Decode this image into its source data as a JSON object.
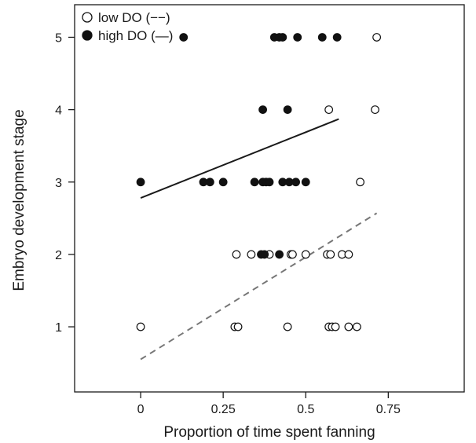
{
  "chart_data": {
    "type": "scatter",
    "title": "",
    "xlabel": "Proportion of time spent fanning",
    "ylabel": "Embryo development stage",
    "xlim": [
      -0.2,
      0.98
    ],
    "ylim": [
      0.1,
      5.45
    ],
    "x_ticks": [
      0,
      0.25,
      0.5,
      0.75
    ],
    "x_tick_labels": [
      "0",
      "0.25",
      "0.5",
      "0.75"
    ],
    "y_ticks": [
      1,
      2,
      3,
      4,
      5
    ],
    "y_tick_labels": [
      "1",
      "2",
      "3",
      "4",
      "5"
    ],
    "grid": false,
    "legend_position": "top-left",
    "series": [
      {
        "name": "low DO",
        "legend_text": "low DO",
        "legend_line_glyph": "(−−)",
        "marker": "open-circle",
        "line_style": "dashed",
        "line_color": "#777777",
        "points": [
          [
            0.0,
            1
          ],
          [
            0.285,
            1
          ],
          [
            0.295,
            1
          ],
          [
            0.445,
            1
          ],
          [
            0.57,
            1
          ],
          [
            0.58,
            1
          ],
          [
            0.59,
            1
          ],
          [
            0.63,
            1
          ],
          [
            0.655,
            1
          ],
          [
            0.29,
            2
          ],
          [
            0.335,
            2
          ],
          [
            0.39,
            2
          ],
          [
            0.455,
            2
          ],
          [
            0.46,
            2
          ],
          [
            0.5,
            2
          ],
          [
            0.565,
            2
          ],
          [
            0.575,
            2
          ],
          [
            0.61,
            2
          ],
          [
            0.63,
            2
          ],
          [
            0.665,
            3
          ],
          [
            0.57,
            4
          ],
          [
            0.71,
            4
          ],
          [
            0.715,
            5
          ]
        ],
        "trend_line": [
          [
            0.0,
            0.55
          ],
          [
            0.715,
            2.57
          ]
        ]
      },
      {
        "name": "high DO",
        "legend_text": "high DO",
        "legend_line_glyph": "(—)",
        "marker": "filled-circle",
        "line_style": "solid",
        "line_color": "#1a1a1a",
        "points": [
          [
            0.0,
            3
          ],
          [
            0.19,
            3
          ],
          [
            0.21,
            3
          ],
          [
            0.25,
            3
          ],
          [
            0.345,
            3
          ],
          [
            0.37,
            3
          ],
          [
            0.38,
            3
          ],
          [
            0.39,
            3
          ],
          [
            0.43,
            3
          ],
          [
            0.45,
            3
          ],
          [
            0.47,
            3
          ],
          [
            0.5,
            3
          ],
          [
            0.365,
            2
          ],
          [
            0.375,
            2
          ],
          [
            0.42,
            2
          ],
          [
            0.37,
            4
          ],
          [
            0.445,
            4
          ],
          [
            0.13,
            5
          ],
          [
            0.405,
            5
          ],
          [
            0.42,
            5
          ],
          [
            0.43,
            5
          ],
          [
            0.475,
            5
          ],
          [
            0.55,
            5
          ],
          [
            0.595,
            5
          ]
        ],
        "trend_line": [
          [
            0.0,
            2.78
          ],
          [
            0.6,
            3.87
          ]
        ]
      }
    ]
  }
}
